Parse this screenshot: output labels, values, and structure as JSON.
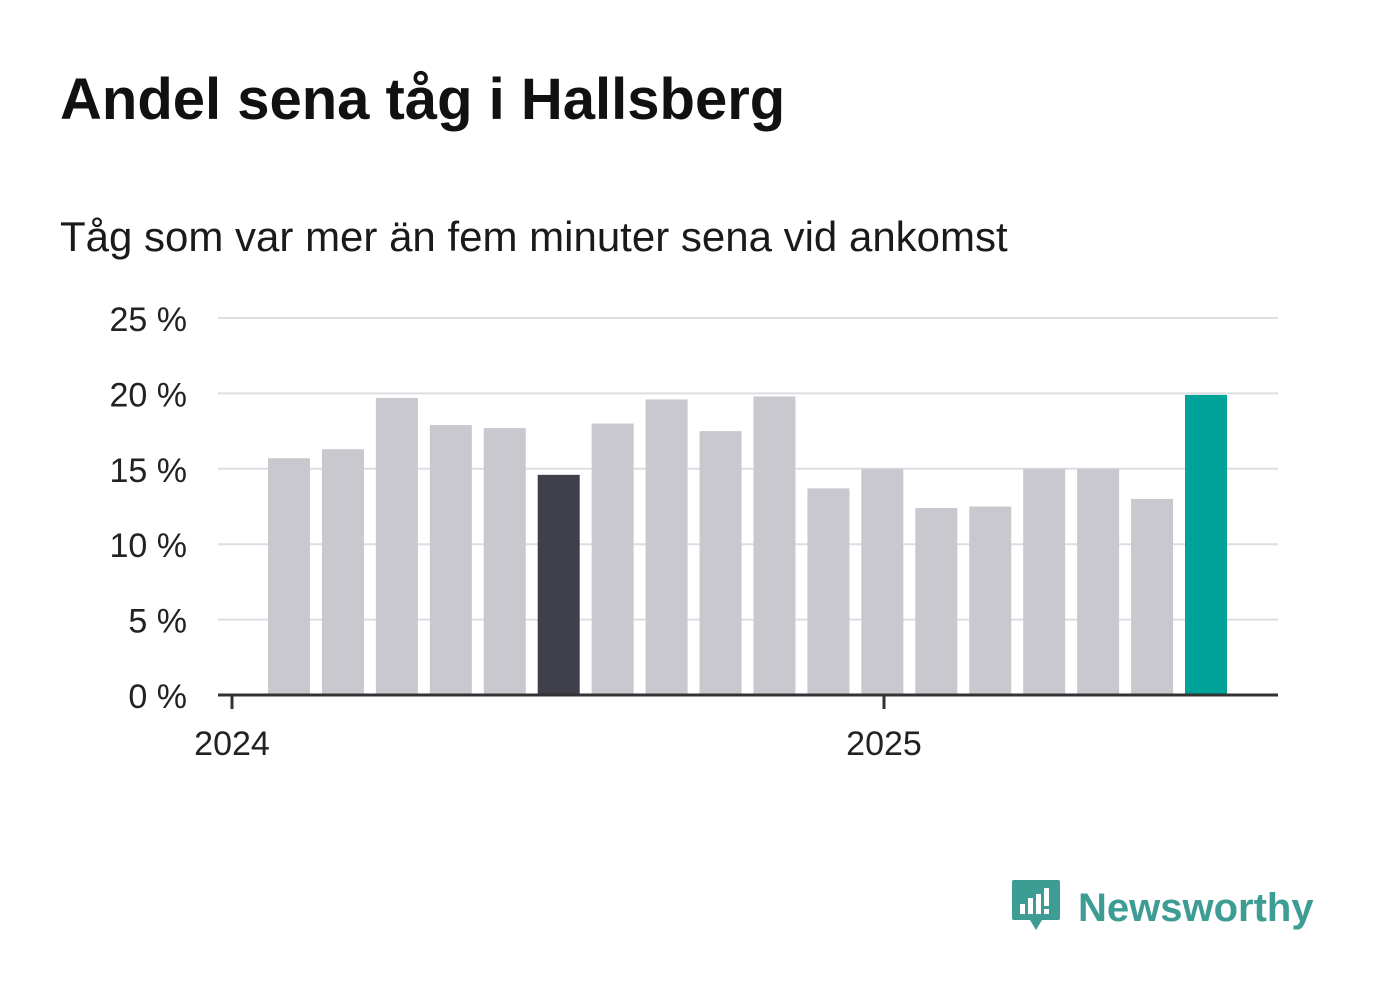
{
  "title": "Andel sena tåg i Hallsberg",
  "subtitle": "Tåg som var mer än fem minuter sena vid ankomst",
  "brand": {
    "name": "Newsworthy",
    "icon": "newsworthy-logo-icon",
    "color": "#3d9c93"
  },
  "chart_data": {
    "type": "bar",
    "y_ticks": [
      "0 %",
      "5 %",
      "10 %",
      "15 %",
      "20 %",
      "25 %"
    ],
    "ylim": [
      0,
      25
    ],
    "x_ticks": [
      "2024",
      "2025"
    ],
    "values": [
      15.7,
      16.3,
      19.7,
      17.9,
      17.7,
      14.6,
      18.0,
      19.6,
      17.5,
      19.8,
      13.7,
      15.0,
      12.4,
      12.5,
      15.0,
      15.0,
      13.0,
      19.9
    ],
    "colors": {
      "default": "#c9c8cf",
      "highlight_previous_year": "#403f4c",
      "highlight_latest": "#00a39a"
    },
    "grid": true
  }
}
